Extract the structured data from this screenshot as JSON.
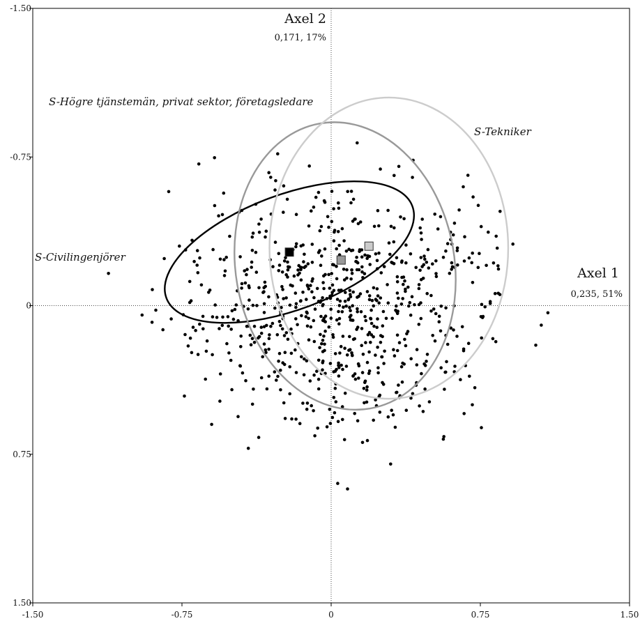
{
  "chart_data": {
    "type": "scatter",
    "xlim": [
      -1.5,
      1.5
    ],
    "ylim": [
      -1.5,
      1.5
    ],
    "y_inverted": true,
    "x_ticks": [
      "-1.50",
      "-0.75",
      "0",
      "0.75",
      "1.50"
    ],
    "y_ticks": [
      {
        "value": -1.5,
        "label": "-1.50"
      },
      {
        "value": -0.75,
        "label": "-0.75"
      },
      {
        "value": 0,
        "label": "0"
      },
      {
        "value": 0.75,
        "label": "0.75"
      },
      {
        "value": 1.5,
        "label": "1.50"
      }
    ],
    "axis1": {
      "title": "Axel 1",
      "subtitle": "0,235, 51%"
    },
    "axis2": {
      "title": "Axel 2",
      "subtitle": "0,171, 17%"
    },
    "grid": false,
    "point_color": "#000000",
    "groups": [
      {
        "label": "S-Civilingenjörer",
        "color": "#000000",
        "center": [
          -0.21,
          -0.27
        ],
        "ellipse": {
          "cx": -0.21,
          "cy": -0.27,
          "rx": 0.66,
          "ry": 0.29,
          "angle_deg": -20.5
        }
      },
      {
        "label": "S-Högre tjänstemän, privat sektor, företagsledare",
        "color": "#999999",
        "center": [
          0.05,
          -0.23
        ],
        "ellipse": {
          "cx": 0.07,
          "cy": -0.2,
          "rx": 0.55,
          "ry": 0.73,
          "angle_deg": -10
        }
      },
      {
        "label": "S-Tekniker",
        "color": "#cccccc",
        "center": [
          0.19,
          -0.3
        ],
        "ellipse": {
          "cx": 0.29,
          "cy": -0.29,
          "rx": 0.6,
          "ry": 0.76,
          "angle_deg": 0
        }
      }
    ],
    "points_seed": 17,
    "points_count": 780
  }
}
